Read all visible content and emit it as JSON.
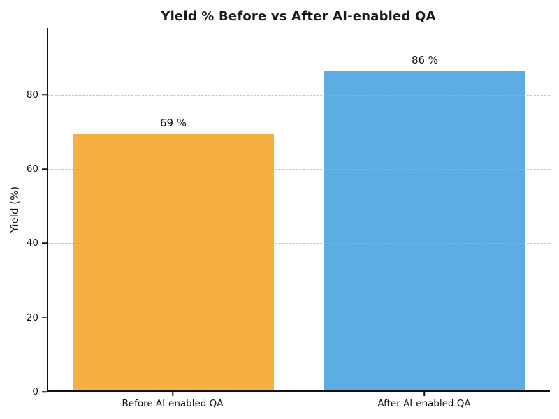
{
  "title": "Yield % Before vs After AI-enabled QA",
  "chart_data": {
    "type": "bar",
    "title": "Yield % Before vs After AI-enabled QA",
    "categories": [
      "Before AI-enabled QA",
      "After AI-enabled QA"
    ],
    "values": [
      69,
      86
    ],
    "bar_labels": [
      "69 %",
      "86 %"
    ],
    "bar_colors": [
      "#F5B041",
      "#5DADE2"
    ],
    "xlabel": "",
    "ylabel": "Yield (%)",
    "ylim": [
      0,
      98
    ],
    "yticks": [
      0,
      20,
      40,
      60,
      80
    ],
    "grid": "horizontal-dashed",
    "grid_color": "#AFAFAF",
    "legend": "none",
    "background_color": "#FFFFFF",
    "bar_width_fraction": 0.8
  }
}
